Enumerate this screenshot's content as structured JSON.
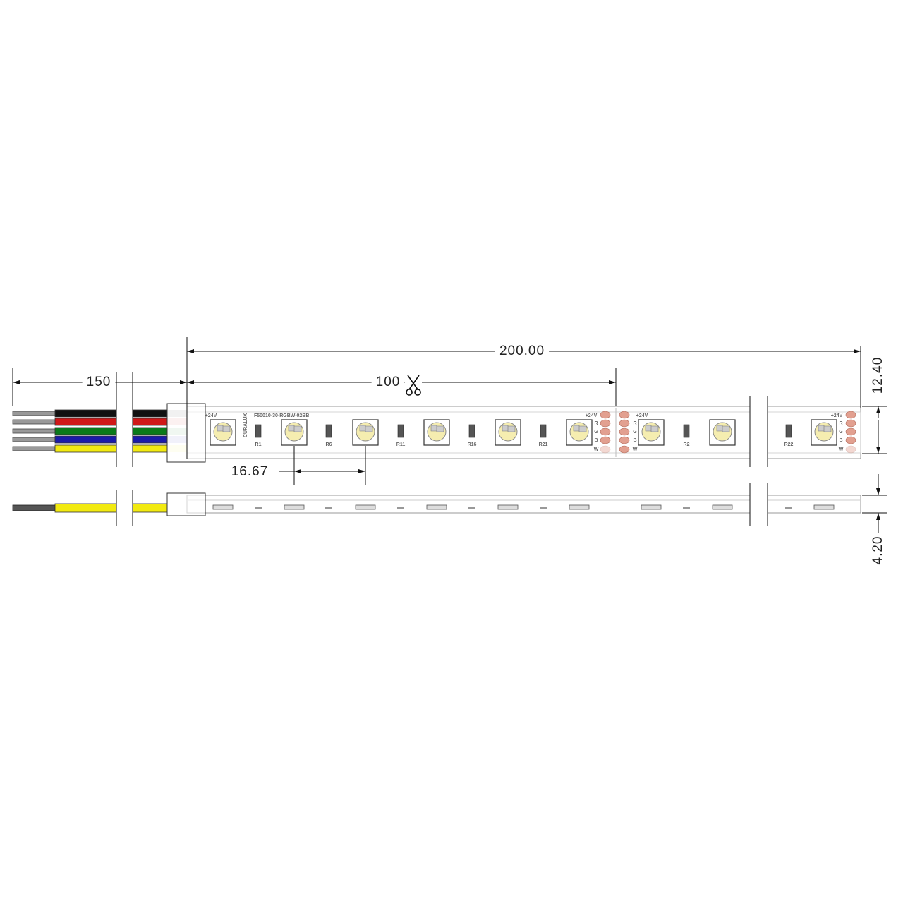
{
  "dimensions": {
    "total_length": "200.00",
    "cut_length": "100",
    "wire_length": "150",
    "led_pitch": "16.67",
    "width": "12.40",
    "height": "4.20"
  },
  "pcb": {
    "part_number": "F50010-30-RGBW-02BB",
    "brand": "CURALUX",
    "supply_label": "+24V",
    "pad_labels": [
      "R",
      "G",
      "B",
      "W"
    ],
    "resistors": [
      "R1",
      "R6",
      "R11",
      "R16",
      "R21",
      "R2",
      "R22"
    ]
  }
}
